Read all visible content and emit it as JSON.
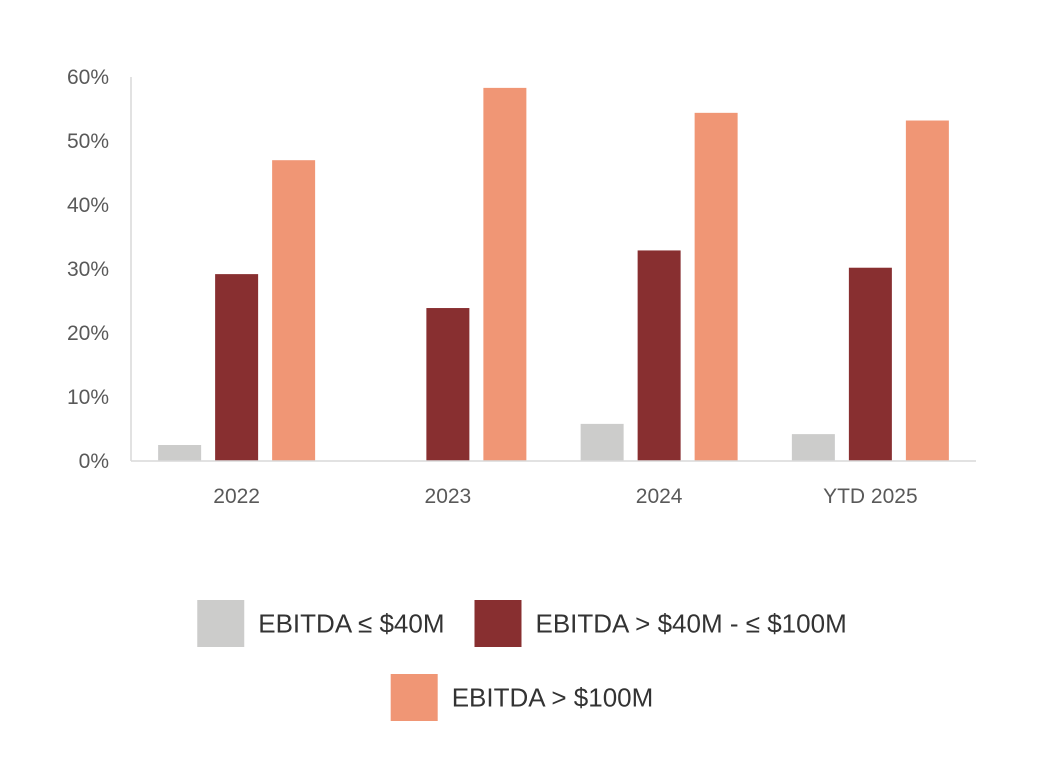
{
  "chart_data": {
    "type": "bar",
    "title": "",
    "xlabel": "",
    "ylabel": "",
    "ylim": [
      0,
      60
    ],
    "yticks": [
      "0%",
      "10%",
      "20%",
      "30%",
      "40%",
      "50%",
      "60%"
    ],
    "ytick_values": [
      0,
      10,
      20,
      30,
      40,
      50,
      60
    ],
    "categories": [
      "2022",
      "2023",
      "2024",
      "YTD 2025"
    ],
    "series": [
      {
        "name": "EBITDA ≤ $40M",
        "color": "#cccccb",
        "values": [
          2.5,
          0,
          5.8,
          4.2
        ]
      },
      {
        "name": "EBITDA > $40M - ≤ $100M",
        "color": "#882f30",
        "values": [
          29.2,
          23.9,
          32.9,
          30.2
        ]
      },
      {
        "name": "EBITDA > $100M",
        "color": "#f09675",
        "values": [
          47,
          58.3,
          54.4,
          53.2
        ]
      }
    ],
    "grid": false,
    "legend_position": "bottom"
  }
}
